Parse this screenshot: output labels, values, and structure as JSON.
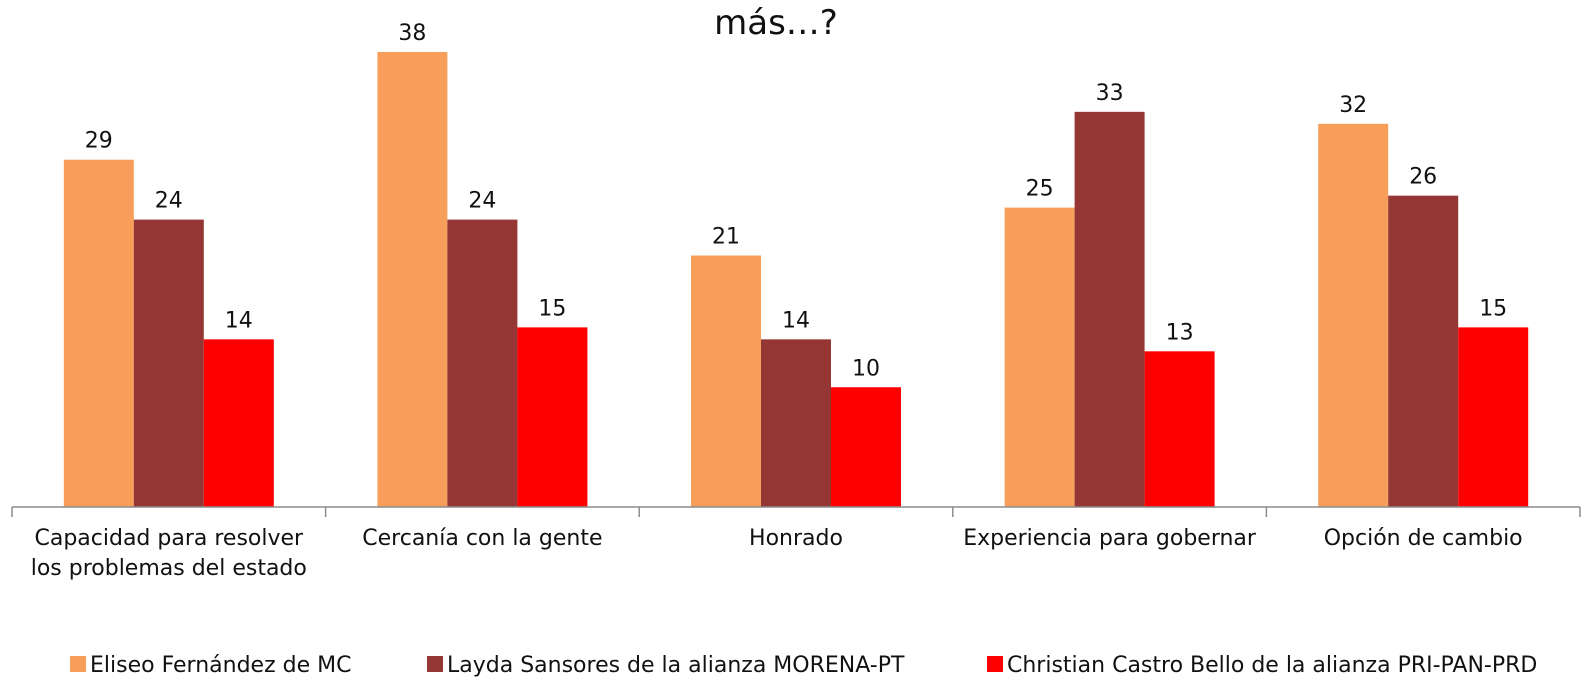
{
  "chart_data": {
    "type": "bar",
    "title": "más…?",
    "categories": [
      "Capacidad para resolver\nlos problemas del estado",
      "Cercanía con la gente",
      "Honrado",
      "Experiencia para gobernar",
      "Opción de cambio"
    ],
    "series": [
      {
        "name": "Eliseo Fernández de MC",
        "color": "#f79f5a",
        "values": [
          29,
          38,
          21,
          25,
          32
        ]
      },
      {
        "name": "Layda Sansores de la alianza MORENA-PT",
        "color": "#943634",
        "values": [
          24,
          24,
          14,
          33,
          26
        ]
      },
      {
        "name": "Christian Castro Bello de la alianza PRI-PAN-PRD",
        "color": "#ff0000",
        "values": [
          14,
          15,
          10,
          13,
          15
        ]
      }
    ],
    "ylim": [
      0,
      40
    ]
  }
}
